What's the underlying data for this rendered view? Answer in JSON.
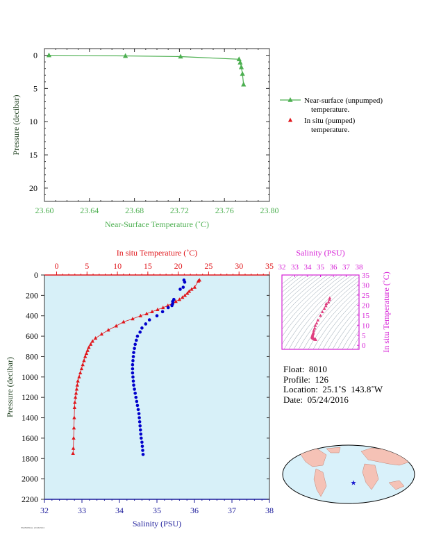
{
  "chart_data": [
    {
      "type": "line",
      "xlabel": "Near-Surface Temperature (˚C)",
      "ylabel": "Pressure (decibar)",
      "xlim": [
        23.6,
        23.8
      ],
      "ylim": [
        22,
        -1
      ],
      "xticks": [
        "23.60",
        "23.64",
        "23.68",
        "23.72",
        "23.76",
        "23.80"
      ],
      "yticks": [
        "0",
        "5",
        "10",
        "15",
        "20"
      ],
      "series": [
        {
          "name": "Near-surface (unpumped) temperature.",
          "color": "#4caf50",
          "x": [
            23.604,
            23.672,
            23.721,
            23.773,
            23.774,
            23.775,
            23.776,
            23.777
          ],
          "y": [
            0.0,
            0.1,
            0.2,
            0.6,
            1.1,
            1.8,
            2.8,
            4.4
          ]
        },
        {
          "name": "In situ (pumped) temperature.",
          "color": "#e0161b",
          "x": [],
          "y": []
        }
      ],
      "grid": false,
      "legend": "right"
    },
    {
      "type": "line",
      "top_xlabel": "In situ Temperature (˚C)",
      "bottom_xlabel": "Salinity (PSU)",
      "ylabel": "Pressure (decibar)",
      "temp_xlim": [
        -2,
        35
      ],
      "sal_xlim": [
        32,
        38
      ],
      "ylim": [
        2200,
        0
      ],
      "temp_ticks": [
        "0",
        "5",
        "10",
        "15",
        "20",
        "25",
        "30",
        "35"
      ],
      "sal_ticks": [
        "32",
        "33",
        "34",
        "35",
        "36",
        "37",
        "38"
      ],
      "pressure_ticks": [
        "0",
        "200",
        "400",
        "600",
        "800",
        "1000",
        "1200",
        "1400",
        "1600",
        "1800",
        "2000",
        "2200"
      ],
      "background": "#d7f0f8",
      "series": [
        {
          "name": "Temperature",
          "color": "#e0161b",
          "x": [
            23.5,
            23.3,
            22.7,
            22.2,
            21.8,
            21.5,
            21.1,
            20.7,
            20.2,
            19.6,
            19.0,
            18.3,
            17.5,
            16.6,
            15.7,
            14.8,
            13.8,
            12.5,
            11.0,
            9.8,
            8.5,
            7.4,
            6.4,
            5.9,
            5.6,
            5.3,
            5.1,
            4.9,
            4.7,
            4.5,
            4.3,
            4.1,
            3.9,
            3.7,
            3.5,
            3.4,
            3.3,
            3.2,
            3.1,
            3.0,
            2.95,
            2.9,
            2.85,
            2.8,
            2.75,
            2.7
          ],
          "y": [
            50,
            60,
            120,
            140,
            160,
            180,
            200,
            220,
            240,
            260,
            280,
            300,
            320,
            340,
            360,
            380,
            400,
            430,
            460,
            500,
            540,
            580,
            620,
            650,
            680,
            710,
            740,
            770,
            800,
            840,
            880,
            920,
            960,
            1000,
            1040,
            1080,
            1120,
            1160,
            1200,
            1250,
            1300,
            1400,
            1500,
            1600,
            1700,
            1750
          ]
        },
        {
          "name": "Salinity",
          "color": "#0000cc",
          "x": [
            35.72,
            35.74,
            35.7,
            35.62,
            35.45,
            35.42,
            35.42,
            35.4,
            35.3,
            35.15,
            35.0,
            34.8,
            34.7,
            34.6,
            34.55,
            34.48,
            34.45,
            34.42,
            34.4,
            34.38,
            34.37,
            34.36,
            34.35,
            34.35,
            34.35,
            34.36,
            34.37,
            34.38,
            34.4,
            34.42,
            34.44,
            34.46,
            34.48,
            34.5,
            34.52,
            34.53,
            34.54,
            34.55,
            34.56,
            34.57,
            34.58,
            34.6,
            34.61,
            34.62,
            34.63
          ],
          "y": [
            50,
            70,
            120,
            140,
            240,
            260,
            280,
            300,
            320,
            360,
            400,
            440,
            480,
            520,
            560,
            600,
            640,
            680,
            720,
            760,
            800,
            840,
            880,
            920,
            960,
            1000,
            1040,
            1080,
            1120,
            1160,
            1200,
            1240,
            1280,
            1320,
            1360,
            1400,
            1440,
            1480,
            1520,
            1560,
            1600,
            1640,
            1680,
            1720,
            1760
          ]
        }
      ]
    },
    {
      "type": "scatter",
      "top_xlabel": "Salinity (PSU)",
      "right_ylabel": "In situ Temperature (˚C)",
      "xticks": [
        "32",
        "33",
        "34",
        "35",
        "36",
        "37",
        "38"
      ],
      "yticks": [
        "0",
        "5",
        "10",
        "15",
        "20",
        "25",
        "30",
        "35"
      ],
      "xlim": [
        32,
        38
      ],
      "ylim": [
        -2,
        35
      ],
      "x": [
        35.72,
        35.7,
        35.62,
        35.45,
        35.42,
        35.3,
        35.15,
        35.0,
        34.8,
        34.7,
        34.6,
        34.55,
        34.48,
        34.45,
        34.42,
        34.4,
        34.38,
        34.37,
        34.36,
        34.35,
        34.36,
        34.38,
        34.42,
        34.46,
        34.5,
        34.55,
        34.6,
        34.63
      ],
      "y": [
        23.5,
        22.7,
        21.5,
        20.7,
        19.6,
        18.3,
        16.6,
        14.8,
        12.5,
        11.0,
        9.8,
        8.5,
        7.4,
        6.4,
        5.9,
        5.5,
        5.1,
        4.8,
        4.5,
        4.2,
        3.9,
        3.7,
        3.5,
        3.3,
        3.1,
        3.0,
        2.9,
        2.8
      ],
      "color": "#e04080"
    }
  ],
  "info": {
    "float": "Float:  8010",
    "profile": "Profile:  126",
    "location": "Location:  25.1˚S  143.8˚W",
    "date": "Date:  05/24/2016"
  },
  "footer_note": "FAKESERIAL 20160524",
  "map": {
    "marker_lat": -25.1,
    "marker_lon": -143.8,
    "marker_icon": "star-icon"
  }
}
